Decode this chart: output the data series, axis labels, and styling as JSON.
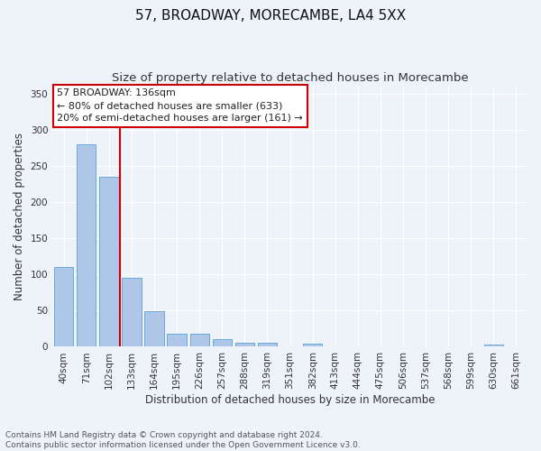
{
  "title": "57, BROADWAY, MORECAMBE, LA4 5XX",
  "subtitle": "Size of property relative to detached houses in Morecambe",
  "xlabel": "Distribution of detached houses by size in Morecambe",
  "ylabel": "Number of detached properties",
  "bar_values": [
    110,
    280,
    235,
    95,
    49,
    18,
    18,
    10,
    5,
    5,
    0,
    4,
    0,
    0,
    0,
    0,
    0,
    0,
    0,
    3,
    0
  ],
  "bar_labels": [
    "40sqm",
    "71sqm",
    "102sqm",
    "133sqm",
    "164sqm",
    "195sqm",
    "226sqm",
    "257sqm",
    "288sqm",
    "319sqm",
    "351sqm",
    "382sqm",
    "413sqm",
    "444sqm",
    "475sqm",
    "506sqm",
    "537sqm",
    "568sqm",
    "599sqm",
    "630sqm",
    "661sqm"
  ],
  "bar_color": "#aec6e8",
  "bar_edge_color": "#5a9fd4",
  "vline_color": "#cc0000",
  "annotation_text": "57 BROADWAY: 136sqm\n← 80% of detached houses are smaller (633)\n20% of semi-detached houses are larger (161) →",
  "annotation_box_color": "#ffffff",
  "annotation_box_edge": "#cc0000",
  "ylim": [
    0,
    360
  ],
  "yticks": [
    0,
    50,
    100,
    150,
    200,
    250,
    300,
    350
  ],
  "footnote": "Contains HM Land Registry data © Crown copyright and database right 2024.\nContains public sector information licensed under the Open Government Licence v3.0.",
  "background_color": "#eef2f9",
  "grid_color": "#ffffff",
  "title_fontsize": 11,
  "subtitle_fontsize": 9.5,
  "axis_label_fontsize": 8.5,
  "tick_fontsize": 7.5,
  "annotation_fontsize": 8,
  "footnote_fontsize": 6.5
}
